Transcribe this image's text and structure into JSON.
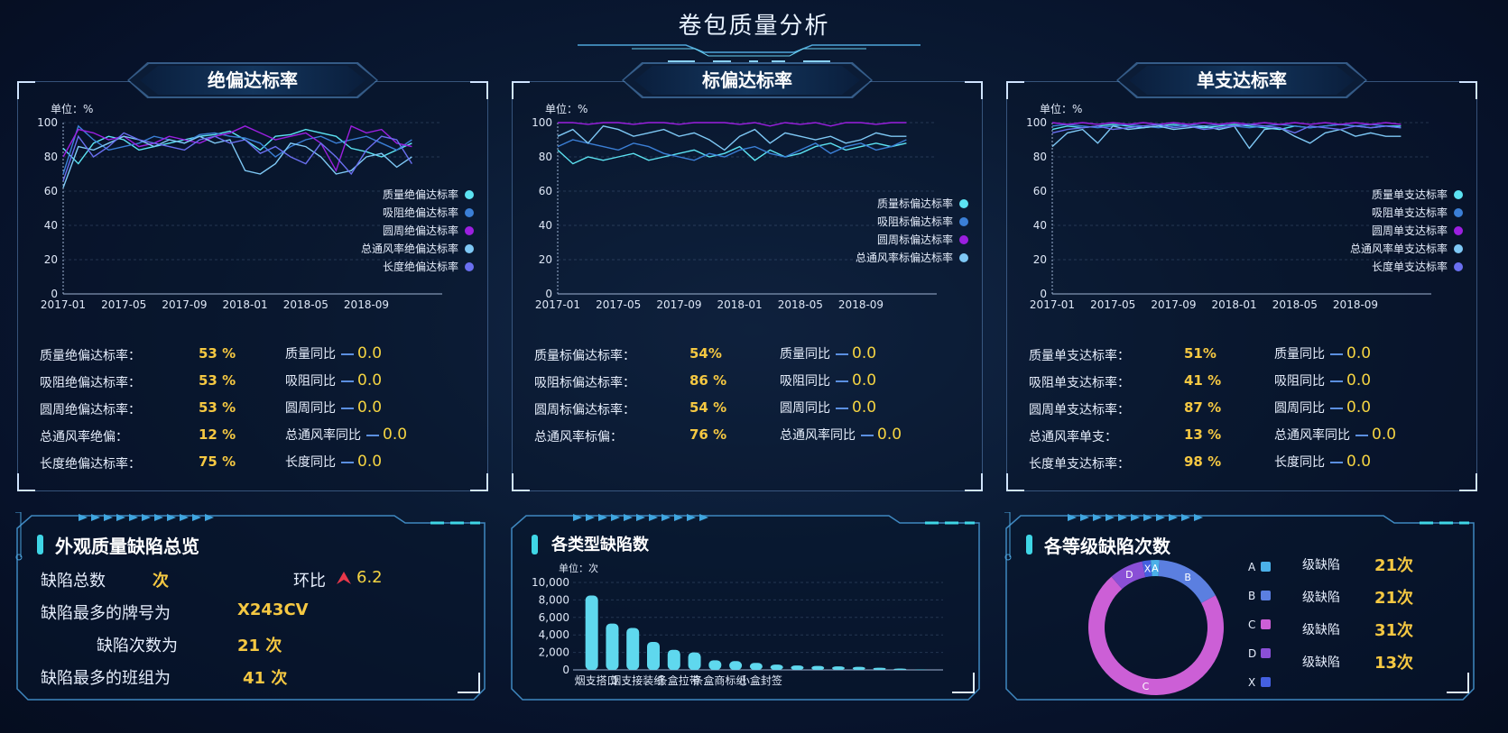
{
  "page": {
    "title": "卷包质量分析"
  },
  "panels": [
    {
      "title": "绝偏达标率",
      "unit": "单位：%",
      "legend": [
        "质量绝偏达标率",
        "吸阻绝偏达标率",
        "圆周绝偏达标率",
        "总通风率绝偏达标率",
        "长度绝偏达标率"
      ],
      "stats": [
        {
          "label": "质量绝偏达标率：",
          "value": "53  %",
          "yoy_label": "质量同比",
          "yoy": "0.0"
        },
        {
          "label": "吸阻绝偏达标率：",
          "value": "53  %",
          "yoy_label": "吸阻同比",
          "yoy": "0.0"
        },
        {
          "label": "圆周绝偏达标率：",
          "value": "53  %",
          "yoy_label": "圆周同比",
          "yoy": "0.0"
        },
        {
          "label": "总通风率绝偏：",
          "value": "12  %",
          "yoy_label": "总通风率同比",
          "yoy": "0.0"
        },
        {
          "label": "长度绝偏达标率：",
          "value": "75  %",
          "yoy_label": "长度同比",
          "yoy": "0.0"
        }
      ]
    },
    {
      "title": "标偏达标率",
      "unit": "单位：%",
      "legend": [
        "质量标偏达标率",
        "吸阻标偏达标率",
        "圆周标偏达标率",
        "总通风率标偏达标率"
      ],
      "stats": [
        {
          "label": "质量标偏达标率：",
          "value": "54%",
          "yoy_label": "质量同比",
          "yoy": "0.0"
        },
        {
          "label": "吸阻标偏达标率：",
          "value": "86  %",
          "yoy_label": "吸阻同比",
          "yoy": "0.0"
        },
        {
          "label": "圆周标偏达标率：",
          "value": "54  %",
          "yoy_label": "圆周同比",
          "yoy": "0.0"
        },
        {
          "label": "总通风率标偏：",
          "value": "76  %",
          "yoy_label": "总通风率同比",
          "yoy": "0.0"
        }
      ]
    },
    {
      "title": "单支达标率",
      "unit": "单位：%",
      "legend": [
        "质量单支达标率",
        "吸阻单支达标率",
        "圆周单支达标率",
        "总通风率单支达标率",
        "长度单支达标率"
      ],
      "stats": [
        {
          "label": "质量单支达标率：",
          "value": "51%",
          "yoy_label": "质量同比",
          "yoy": "0.0"
        },
        {
          "label": "吸阻单支达标率：",
          "value": "41 %",
          "yoy_label": "吸阻同比",
          "yoy": "0.0"
        },
        {
          "label": "圆周单支达标率：",
          "value": "87 %",
          "yoy_label": "圆周同比",
          "yoy": "0.0"
        },
        {
          "label": "总通风率单支：",
          "value": "13  %",
          "yoy_label": "总通风率同比",
          "yoy": "0.0"
        },
        {
          "label": "长度单支达标率：",
          "value": "98  %",
          "yoy_label": "长度同比",
          "yoy": "0.0"
        }
      ]
    }
  ],
  "defects": {
    "title": "外观质量缺陷总览",
    "total_label": "缺陷总数",
    "total_unit": "次",
    "mom_label": "环比",
    "mom_value": "6.2",
    "brand_label": "缺陷最多的牌号为",
    "brand_value": "X243CV",
    "count_label": "缺陷次数为",
    "count_value": "21  次",
    "team_label": "缺陷最多的班组为",
    "team_value": "41 次"
  },
  "type_chart_title": "各类型缺陷数",
  "grade_chart_title": "各等级缺陷次数",
  "grade_list": [
    {
      "grade": "A",
      "label": "级缺陷",
      "value": "21次"
    },
    {
      "grade": "B",
      "label": "级缺陷",
      "value": "21次"
    },
    {
      "grade": "C",
      "label": "级缺陷",
      "value": "31次"
    },
    {
      "grade": "D",
      "label": "级缺陷",
      "value": "13次"
    }
  ],
  "chart_data": [
    {
      "type": "line",
      "unit": "单位：%",
      "ylim": [
        0,
        100
      ],
      "yticks": [
        0,
        20,
        40,
        60,
        80,
        100
      ],
      "xticks": [
        "2017-01",
        "2017-05",
        "2017-09",
        "2018-01",
        "2018-05",
        "2018-09"
      ],
      "n_points": 24,
      "colors": [
        "#5ce3f2",
        "#3b7fd6",
        "#9b1fe0",
        "#7ec8f5",
        "#6a6ff0"
      ],
      "series": [
        {
          "name": "质量绝偏达标率",
          "values": [
            85,
            76,
            88,
            92,
            90,
            84,
            86,
            88,
            90,
            92,
            93,
            95,
            90,
            84,
            92,
            93,
            96,
            94,
            92,
            85,
            83,
            80,
            84,
            88
          ]
        },
        {
          "name": "吸阻绝偏达标率",
          "values": [
            70,
            98,
            90,
            84,
            86,
            88,
            92,
            90,
            88,
            93,
            94,
            92,
            91,
            88,
            80,
            86,
            90,
            92,
            88,
            90,
            92,
            88,
            84,
            90
          ]
        },
        {
          "name": "圆周绝偏达标率",
          "values": [
            80,
            96,
            94,
            90,
            92,
            86,
            88,
            92,
            90,
            88,
            92,
            94,
            98,
            94,
            90,
            92,
            94,
            88,
            72,
            98,
            94,
            96,
            88,
            86
          ]
        },
        {
          "name": "总通风率绝偏达标率",
          "values": [
            62,
            86,
            84,
            88,
            92,
            90,
            86,
            90,
            88,
            92,
            88,
            90,
            72,
            70,
            76,
            88,
            86,
            80,
            70,
            72,
            80,
            82,
            74,
            80
          ]
        },
        {
          "name": "长度绝偏达标率",
          "values": [
            66,
            92,
            80,
            86,
            94,
            90,
            88,
            86,
            84,
            90,
            92,
            88,
            90,
            82,
            86,
            80,
            76,
            88,
            80,
            70,
            84,
            92,
            90,
            76
          ]
        }
      ]
    },
    {
      "type": "line",
      "unit": "单位：%",
      "ylim": [
        0,
        100
      ],
      "yticks": [
        0,
        20,
        40,
        60,
        80,
        100
      ],
      "xticks": [
        "2017-01",
        "2017-05",
        "2017-09",
        "2018-01",
        "2018-05",
        "2018-09"
      ],
      "n_points": 24,
      "colors": [
        "#5ce3f2",
        "#3b7fd6",
        "#9b1fe0",
        "#7ec8f5"
      ],
      "series": [
        {
          "name": "质量标偏达标率",
          "values": [
            84,
            76,
            80,
            78,
            80,
            82,
            78,
            80,
            82,
            84,
            80,
            82,
            86,
            78,
            84,
            80,
            82,
            86,
            88,
            84,
            86,
            88,
            86,
            88
          ]
        },
        {
          "name": "吸阻标偏达标率",
          "values": [
            86,
            90,
            88,
            86,
            84,
            88,
            86,
            82,
            80,
            78,
            82,
            80,
            84,
            86,
            82,
            80,
            84,
            88,
            82,
            86,
            88,
            84,
            86,
            90
          ]
        },
        {
          "name": "圆周标偏达标率",
          "values": [
            100,
            100,
            99,
            100,
            100,
            99,
            100,
            100,
            99,
            100,
            100,
            100,
            99,
            100,
            98,
            100,
            99,
            100,
            98,
            100,
            100,
            99,
            100,
            100
          ]
        },
        {
          "name": "总通风率标偏达标率",
          "values": [
            92,
            96,
            88,
            98,
            96,
            92,
            94,
            96,
            92,
            94,
            90,
            84,
            92,
            96,
            88,
            94,
            92,
            90,
            92,
            88,
            90,
            94,
            92,
            92
          ]
        }
      ]
    },
    {
      "type": "line",
      "unit": "单位：%",
      "ylim": [
        0,
        100
      ],
      "yticks": [
        0,
        20,
        40,
        60,
        80,
        100
      ],
      "xticks": [
        "2017-01",
        "2017-05",
        "2017-09",
        "2018-01",
        "2018-05",
        "2018-09"
      ],
      "n_points": 24,
      "colors": [
        "#5ce3f2",
        "#3b7fd6",
        "#9b1fe0",
        "#7ec8f5",
        "#6a6ff0"
      ],
      "series": [
        {
          "name": "质量单支达标率",
          "values": [
            96,
            98,
            97,
            98,
            99,
            98,
            97,
            98,
            99,
            98,
            97,
            98,
            99,
            98,
            97,
            96,
            98,
            97,
            98,
            99,
            98,
            97,
            98,
            98
          ]
        },
        {
          "name": "吸阻单支达标率",
          "values": [
            98,
            99,
            98,
            97,
            98,
            99,
            98,
            97,
            98,
            99,
            98,
            99,
            98,
            97,
            98,
            99,
            98,
            97,
            98,
            99,
            98,
            99,
            98,
            97
          ]
        },
        {
          "name": "圆周单支达标率",
          "values": [
            100,
            99,
            100,
            99,
            100,
            99,
            100,
            99,
            100,
            99,
            100,
            99,
            100,
            99,
            100,
            99,
            100,
            99,
            100,
            99,
            100,
            99,
            100,
            99
          ]
        },
        {
          "name": "总通风率单支达标率",
          "values": [
            86,
            94,
            96,
            88,
            98,
            96,
            97,
            98,
            96,
            97,
            98,
            96,
            98,
            85,
            96,
            97,
            92,
            88,
            94,
            96,
            92,
            94,
            92,
            92
          ]
        },
        {
          "name": "长度单支达标率",
          "values": [
            94,
            96,
            97,
            98,
            96,
            97,
            98,
            99,
            97,
            98,
            96,
            97,
            98,
            99,
            98,
            97,
            94,
            98,
            97,
            96,
            98,
            97,
            98,
            97
          ]
        }
      ]
    },
    {
      "type": "bar",
      "unit": "单位：次",
      "ylim": [
        0,
        10000
      ],
      "yticks": [
        "0",
        "2,000",
        "4,000",
        "6,000",
        "8,000",
        "10,000"
      ],
      "categories": [
        "烟支搭口",
        "",
        "烟支接装纸",
        "",
        "条盒拉带",
        "",
        "条盒商标纸",
        "",
        "小盒封签",
        "",
        "",
        "",
        "",
        "",
        "",
        "",
        ""
      ],
      "values": [
        8500,
        5300,
        4800,
        3200,
        2300,
        2000,
        1100,
        1000,
        800,
        600,
        500,
        450,
        400,
        350,
        250,
        150,
        50
      ],
      "color": "#5fd8ee"
    },
    {
      "type": "pie",
      "donut": true,
      "labels": [
        "A",
        "B",
        "C",
        "D",
        "X"
      ],
      "values": [
        2,
        16,
        70,
        8,
        2
      ],
      "colors": [
        "#4bb0e8",
        "#5b7fe0",
        "#cc5fd6",
        "#8a4fd6",
        "#4460e0"
      ]
    }
  ]
}
